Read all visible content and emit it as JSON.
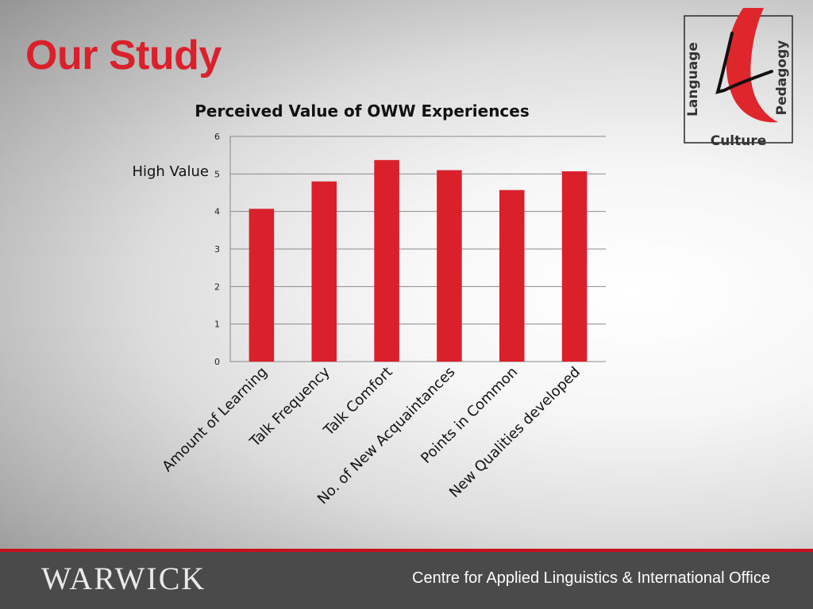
{
  "slide": {
    "title": "Our Study",
    "annotation": "High Value"
  },
  "logo": {
    "words": [
      "Language",
      "Culture",
      "Pedagogy"
    ],
    "accent_color": "#e0262d"
  },
  "footer": {
    "wordmark": "WARWICK",
    "text": "Centre for Applied Linguistics & International Office"
  },
  "chart_data": {
    "type": "bar",
    "title": "Perceived Value of OWW Experiences",
    "xlabel": "",
    "ylabel": "",
    "categories": [
      "Amount of Learning",
      "Talk Frequency",
      "Talk Comfort",
      "No. of New Acquaintances",
      "Points in Common",
      "New Qualities developed"
    ],
    "values": [
      4.07,
      4.8,
      5.37,
      5.1,
      4.57,
      5.07
    ],
    "ylim": [
      0,
      6
    ],
    "yticks": [
      0,
      1,
      2,
      3,
      4,
      5,
      6
    ],
    "grid": true,
    "legend": "none",
    "bar_color": "#d9202b"
  }
}
